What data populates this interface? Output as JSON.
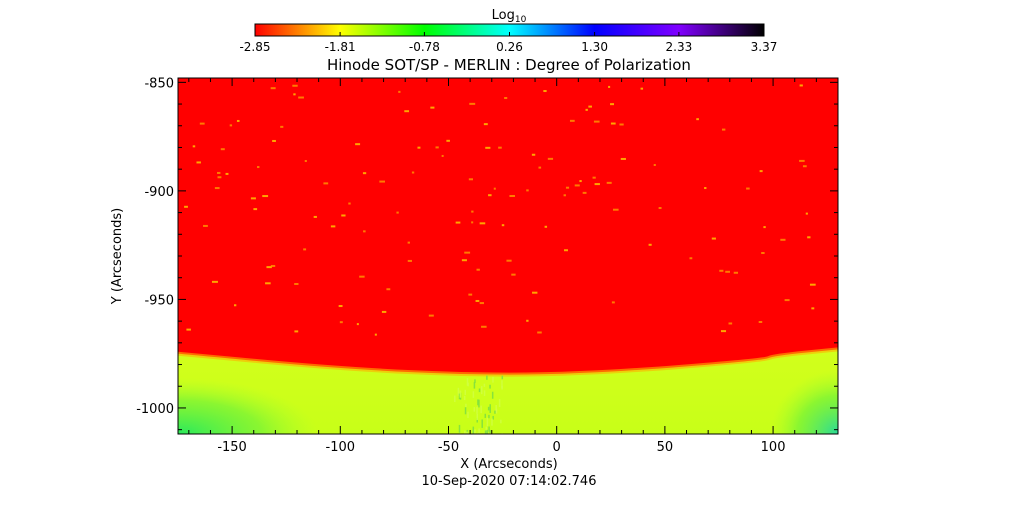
{
  "chart_data": {
    "type": "heatmap",
    "title": "Hinode SOT/SP - MERLIN : Degree of Polarization",
    "xlabel": "X (Arcseconds)",
    "ylabel": "Y (Arcseconds)",
    "timestamp": "10-Sep-2020 07:14:02.746",
    "xlim": [
      -175,
      130
    ],
    "ylim": [
      -1012,
      -848
    ],
    "xticks": [
      -150,
      -100,
      -50,
      0,
      50,
      100
    ],
    "xtick_labels": [
      "-150",
      "-100",
      "-50",
      "0",
      "50",
      "100"
    ],
    "yticks": [
      -850,
      -900,
      -950,
      -1000
    ],
    "ytick_labels": [
      "-850",
      "-900",
      "-950",
      "-1000"
    ],
    "colorbar": {
      "label_main": "Log",
      "label_sub": "10",
      "range": [
        -2.85,
        3.37
      ],
      "ticks": [
        -2.85,
        -1.81,
        -0.78,
        0.26,
        1.3,
        2.33,
        3.37
      ],
      "tick_labels": [
        "-2.85",
        "-1.81",
        "-0.78",
        "0.26",
        "1.30",
        "2.33",
        "3.37"
      ],
      "colors": [
        "#ff0000",
        "#ffff00",
        "#00ff00",
        "#00ffff",
        "#0000ff",
        "#8000ff",
        "#000000"
      ]
    },
    "limb_y": [
      {
        "x": -175,
        "y": -975
      },
      {
        "x": -100,
        "y": -982
      },
      {
        "x": -35,
        "y": -985
      },
      {
        "x": 20,
        "y": -984
      },
      {
        "x": 96,
        "y": -978
      },
      {
        "x": 100,
        "y": -976
      },
      {
        "x": 130,
        "y": -973
      }
    ],
    "regions": {
      "disk_value": -2.85,
      "off_limb_value": -1.2,
      "corner_value": -0.5
    }
  }
}
